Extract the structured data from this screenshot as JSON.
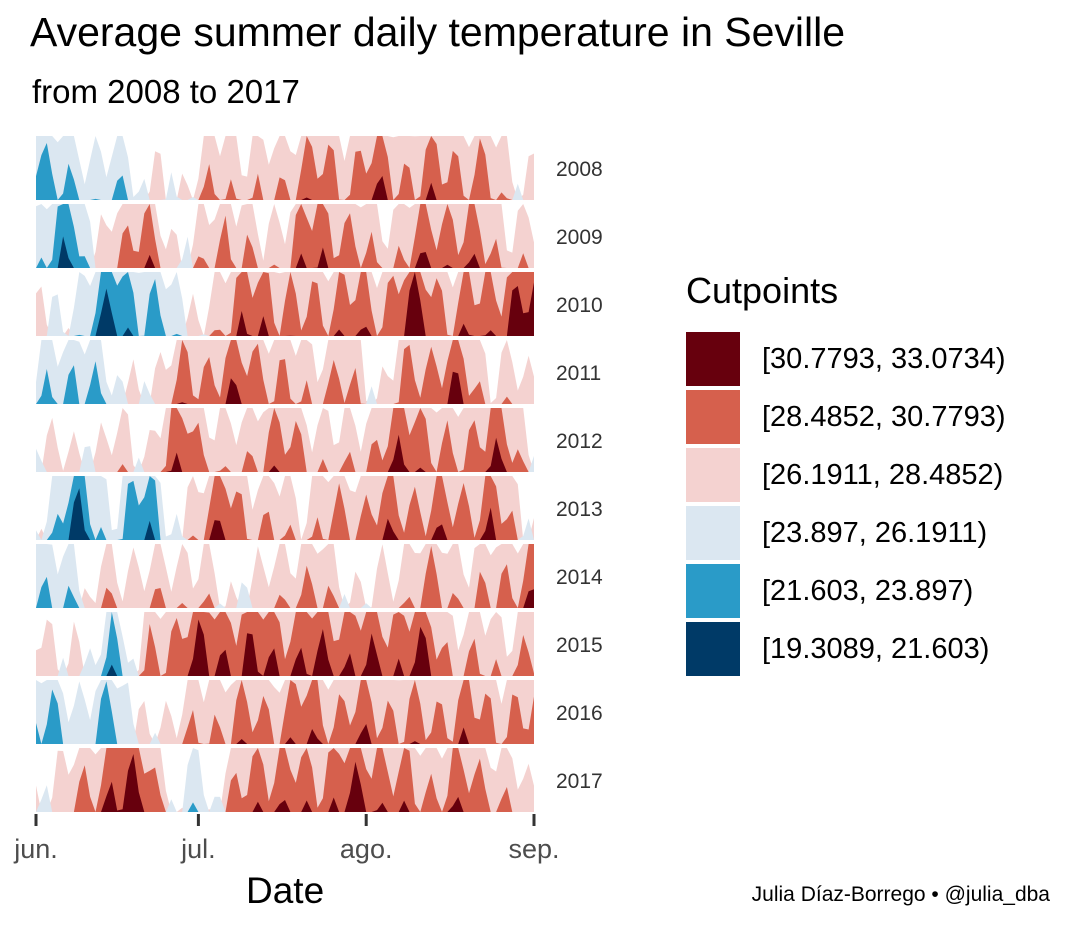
{
  "chart_data": {
    "type": "area",
    "title": "Average summer daily temperature in Seville",
    "subtitle": "from 2008 to 2017",
    "xlabel": "Date",
    "x_ticks": [
      "jun.",
      "jul.",
      "ago.",
      "sep."
    ],
    "x_range": [
      "06-01",
      "09-01"
    ],
    "legend_title": "Cutpoints",
    "legend_position": "right",
    "grid": false,
    "cutpoints": [
      {
        "label": "[30.7793, 33.0734)",
        "color": "#67000d"
      },
      {
        "label": "[28.4852, 30.7793)",
        "color": "#d6604d"
      },
      {
        "label": "[26.1911, 28.4852)",
        "color": "#f4d2d0"
      },
      {
        "label": "[23.897, 26.1911)",
        "color": "#dbe7f1"
      },
      {
        "label": "[21.603, 23.897)",
        "color": "#2a9bc8"
      },
      {
        "label": "[19.3089, 21.603)",
        "color": "#003a67"
      }
    ],
    "band_bounds": [
      19.3089,
      21.603,
      23.897,
      26.1911,
      28.4852,
      30.7793,
      33.0734
    ],
    "x": [
      "06-01",
      "06-08",
      "06-15",
      "06-22",
      "06-29",
      "07-06",
      "07-13",
      "07-20",
      "07-27",
      "08-03",
      "08-10",
      "08-17",
      "08-24",
      "08-31"
    ],
    "series": [
      {
        "name": "2008",
        "values": [
          21.5,
          24.6,
          24.0,
          26.4,
          26.8,
          29.0,
          27.6,
          29.8,
          29.2,
          30.2,
          29.3,
          30.0,
          28.8,
          26.8
        ]
      },
      {
        "name": "2009",
        "values": [
          24.3,
          21.4,
          29.2,
          29.6,
          26.0,
          30.0,
          27.0,
          30.1,
          30.4,
          27.8,
          29.6,
          30.6,
          29.0,
          27.5
        ]
      },
      {
        "name": "2010",
        "values": [
          27.6,
          24.8,
          21.0,
          23.0,
          25.5,
          29.4,
          30.8,
          29.0,
          30.3,
          29.4,
          31.8,
          29.2,
          30.5,
          31.9
        ]
      },
      {
        "name": "2011",
        "values": [
          25.0,
          22.7,
          25.2,
          27.0,
          29.4,
          30.2,
          30.0,
          28.0,
          29.4,
          26.6,
          29.7,
          30.7,
          27.8,
          26.8
        ]
      },
      {
        "name": "2012",
        "values": [
          27.0,
          26.5,
          27.3,
          27.2,
          31.0,
          27.0,
          29.8,
          29.2,
          27.3,
          29.4,
          31.1,
          28.2,
          31.3,
          27.4
        ]
      },
      {
        "name": "2013",
        "values": [
          26.0,
          21.0,
          24.8,
          21.5,
          28.0,
          30.6,
          28.3,
          27.9,
          29.0,
          29.8,
          30.0,
          29.7,
          30.5,
          27.0
        ]
      },
      {
        "name": "2014",
        "values": [
          22.5,
          25.0,
          28.2,
          27.5,
          28.4,
          26.5,
          27.0,
          29.3,
          27.5,
          26.4,
          29.2,
          28.6,
          28.3,
          30.6
        ]
      },
      {
        "name": "2015",
        "values": [
          27.4,
          27.3,
          22.8,
          28.6,
          31.0,
          31.3,
          30.9,
          30.8,
          31.2,
          30.5,
          31.4,
          28.8,
          28.0,
          29.0
        ]
      },
      {
        "name": "2016",
        "values": [
          22.8,
          24.6,
          23.0,
          27.0,
          27.8,
          29.5,
          29.3,
          30.2,
          29.7,
          30.0,
          29.1,
          30.0,
          29.5,
          29.2
        ]
      },
      {
        "name": "2017",
        "values": [
          26.6,
          28.0,
          31.4,
          31.0,
          23.5,
          27.8,
          30.8,
          29.7,
          30.8,
          31.0,
          29.0,
          29.9,
          29.4,
          26.6
        ]
      }
    ]
  },
  "caption": "Julia Díaz-Borrego • @julia_dba"
}
